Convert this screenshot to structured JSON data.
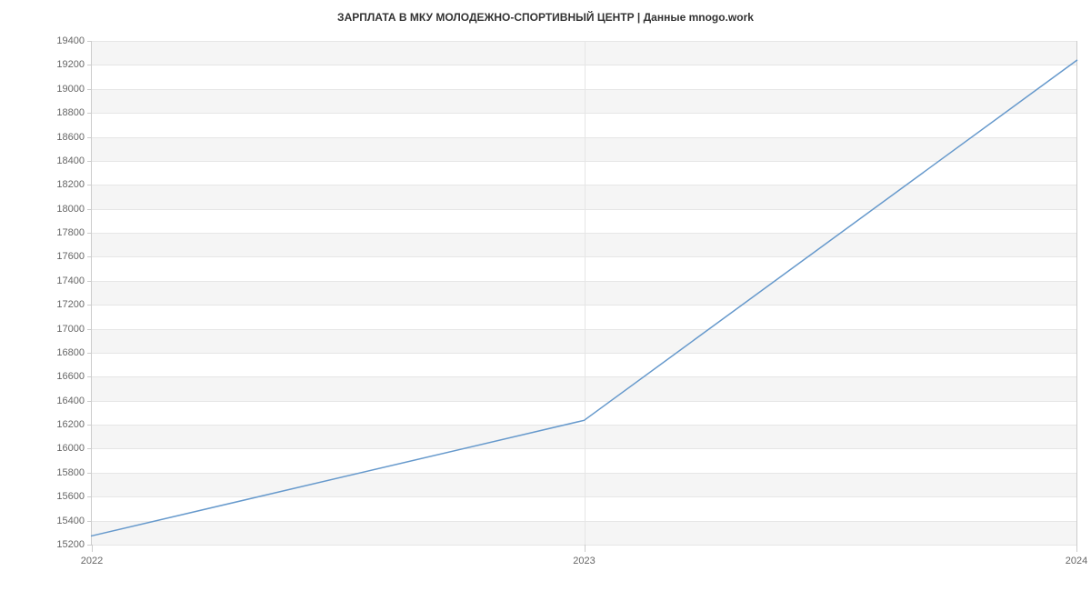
{
  "chart": {
    "type": "line",
    "title": "ЗАРПЛАТА В МКУ МОЛОДЕЖНО-СПОРТИВНЫЙ  ЦЕНТР | Данные mnogo.work",
    "title_fontsize": 12,
    "title_color": "#333333",
    "background_color": "#ffffff",
    "plot_band_color": "#f5f5f5",
    "grid_color": "#e6e6e6",
    "axis_line_color": "#cccccc",
    "tick_label_color": "#666666",
    "tick_label_fontsize": 11,
    "x": {
      "categories": [
        "2022",
        "2023",
        "2024"
      ],
      "positions_pct": [
        0,
        50,
        100
      ]
    },
    "y": {
      "min": 15200,
      "max": 19400,
      "tick_step": 200,
      "ticks": [
        15200,
        15400,
        15600,
        15800,
        16000,
        16200,
        16400,
        16600,
        16800,
        17000,
        17200,
        17400,
        17600,
        17800,
        18000,
        18200,
        18400,
        18600,
        18800,
        19000,
        19200,
        19400
      ]
    },
    "series": {
      "name": "salary",
      "color": "#6699cc",
      "line_width": 1.5,
      "marker": "none",
      "x_pct": [
        0,
        50,
        100
      ],
      "y_values": [
        15279,
        16242,
        19242
      ]
    }
  }
}
